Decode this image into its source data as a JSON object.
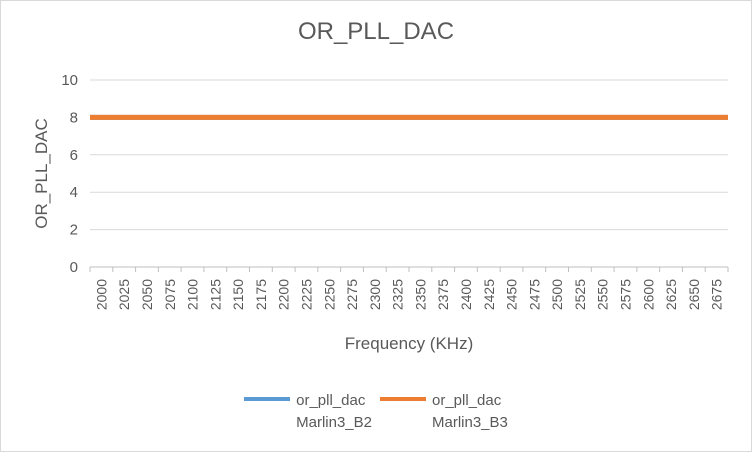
{
  "chart_data": {
    "type": "line",
    "title": "OR_PLL_DAC",
    "xlabel": "Frequency (KHz)",
    "ylabel": "OR_PLL_DAC",
    "ylim": [
      0,
      10
    ],
    "yticks": [
      0,
      2,
      4,
      6,
      8,
      10
    ],
    "categories": [
      "2000",
      "2025",
      "2050",
      "2075",
      "2100",
      "2125",
      "2150",
      "2175",
      "2200",
      "2225",
      "2250",
      "2275",
      "2300",
      "2325",
      "2350",
      "2375",
      "2400",
      "2425",
      "2450",
      "2475",
      "2500",
      "2525",
      "2550",
      "2575",
      "2600",
      "2625",
      "2650",
      "2675"
    ],
    "grid": true,
    "legend_position": "bottom",
    "series": [
      {
        "name": "or_pll_dac Marlin3_B2",
        "legend_lines": [
          "or_pll_dac",
          "Marlin3_B2"
        ],
        "color": "#5b9bd5",
        "values": [
          8,
          8,
          8,
          8,
          8,
          8,
          8,
          8,
          8,
          8,
          8,
          8,
          8,
          8,
          8,
          8,
          8,
          8,
          8,
          8,
          8,
          8,
          8,
          8,
          8,
          8,
          8,
          8
        ]
      },
      {
        "name": "or_pll_dac Marlin3_B3",
        "legend_lines": [
          "or_pll_dac",
          "Marlin3_B3"
        ],
        "color": "#ed7d31",
        "values": [
          8,
          8,
          8,
          8,
          8,
          8,
          8,
          8,
          8,
          8,
          8,
          8,
          8,
          8,
          8,
          8,
          8,
          8,
          8,
          8,
          8,
          8,
          8,
          8,
          8,
          8,
          8,
          8
        ]
      }
    ]
  }
}
